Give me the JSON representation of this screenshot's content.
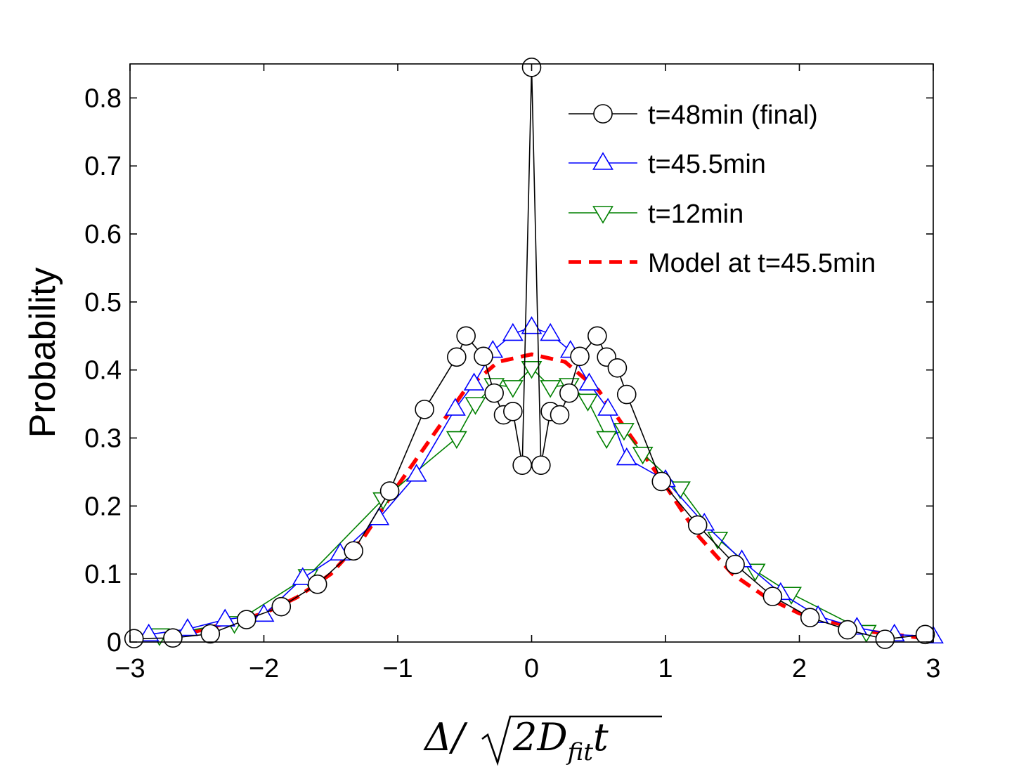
{
  "chart_data": {
    "type": "line",
    "title": "",
    "xlabel": "Δ/√(2D_fit t)",
    "xlabel_parts": {
      "delta": "Δ/",
      "two_d": "2D",
      "sub": "fit",
      "t": "t"
    },
    "ylabel": "Probability",
    "xlim": [
      -3,
      3
    ],
    "ylim": [
      0,
      0.85
    ],
    "xticks": [
      -3,
      -2,
      -1,
      0,
      1,
      2,
      3
    ],
    "xtick_labels": [
      "−3",
      "−2",
      "−1",
      "0",
      "1",
      "2",
      "3"
    ],
    "yticks": [
      0,
      0.1,
      0.2,
      0.3,
      0.4,
      0.5,
      0.6,
      0.7,
      0.8
    ],
    "ytick_labels": [
      "0",
      "0.1",
      "0.2",
      "0.3",
      "0.4",
      "0.5",
      "0.6",
      "0.7",
      "0.8"
    ],
    "grid": false,
    "legend_position": "top-right",
    "series": [
      {
        "name": "t=48min (final)",
        "color": "#000000",
        "marker": "circle",
        "x": [
          -2.97,
          -2.68,
          -2.4,
          -2.13,
          -1.87,
          -1.6,
          -1.33,
          -1.06,
          -0.8,
          -0.56,
          -0.49,
          -0.36,
          -0.28,
          -0.21,
          -0.14,
          -0.07,
          0.0,
          0.07,
          0.14,
          0.21,
          0.28,
          0.36,
          0.49,
          0.56,
          0.64,
          0.71,
          0.97,
          1.24,
          1.52,
          1.8,
          2.08,
          2.36,
          2.64,
          2.94
        ],
        "y": [
          0.005,
          0.006,
          0.012,
          0.033,
          0.052,
          0.085,
          0.134,
          0.222,
          0.342,
          0.419,
          0.45,
          0.42,
          0.366,
          0.334,
          0.339,
          0.26,
          0.845,
          0.26,
          0.339,
          0.334,
          0.366,
          0.42,
          0.45,
          0.419,
          0.403,
          0.364,
          0.236,
          0.172,
          0.114,
          0.067,
          0.036,
          0.018,
          0.004,
          0.011
        ]
      },
      {
        "name": "t=45.5min",
        "color": "#0000ff",
        "marker": "triangle-up",
        "x": [
          -2.86,
          -2.57,
          -2.29,
          -2.0,
          -1.71,
          -1.43,
          -1.14,
          -0.86,
          -0.57,
          -0.43,
          -0.29,
          -0.14,
          0.0,
          0.14,
          0.29,
          0.43,
          0.57,
          0.71,
          1.0,
          1.29,
          1.57,
          1.86,
          2.14,
          2.43,
          2.71,
          3.0
        ],
        "y": [
          0.011,
          0.019,
          0.033,
          0.04,
          0.094,
          0.13,
          0.182,
          0.246,
          0.343,
          0.38,
          0.428,
          0.453,
          0.463,
          0.453,
          0.428,
          0.38,
          0.343,
          0.27,
          0.238,
          0.174,
          0.12,
          0.072,
          0.038,
          0.021,
          0.011,
          0.008
        ]
      },
      {
        "name": "t=12min",
        "color": "#008000",
        "marker": "triangle-down",
        "x": [
          -2.78,
          -2.22,
          -1.67,
          -1.11,
          -0.56,
          -0.42,
          -0.28,
          -0.14,
          0.0,
          0.14,
          0.28,
          0.42,
          0.56,
          0.69,
          0.83,
          1.11,
          1.39,
          1.67,
          1.94,
          2.5
        ],
        "y": [
          0.01,
          0.028,
          0.097,
          0.21,
          0.3,
          0.35,
          0.378,
          0.375,
          0.403,
          0.375,
          0.378,
          0.355,
          0.3,
          0.312,
          0.277,
          0.226,
          0.152,
          0.105,
          0.071,
          0.015
        ]
      },
      {
        "name": "Model at t=45.5min",
        "color": "#ff0000",
        "style": "dashed",
        "x": [
          -3.0,
          -2.5,
          -2.0,
          -1.75,
          -1.5,
          -1.25,
          -1.0,
          -0.75,
          -0.5,
          -0.25,
          0.0,
          0.25,
          0.5,
          0.75,
          1.0,
          1.25,
          1.5,
          1.75,
          2.0,
          2.5,
          3.0
        ],
        "y": [
          0.004,
          0.016,
          0.042,
          0.066,
          0.1,
          0.155,
          0.23,
          0.3,
          0.37,
          0.412,
          0.423,
          0.412,
          0.37,
          0.3,
          0.23,
          0.155,
          0.1,
          0.066,
          0.042,
          0.016,
          0.004
        ]
      }
    ]
  }
}
